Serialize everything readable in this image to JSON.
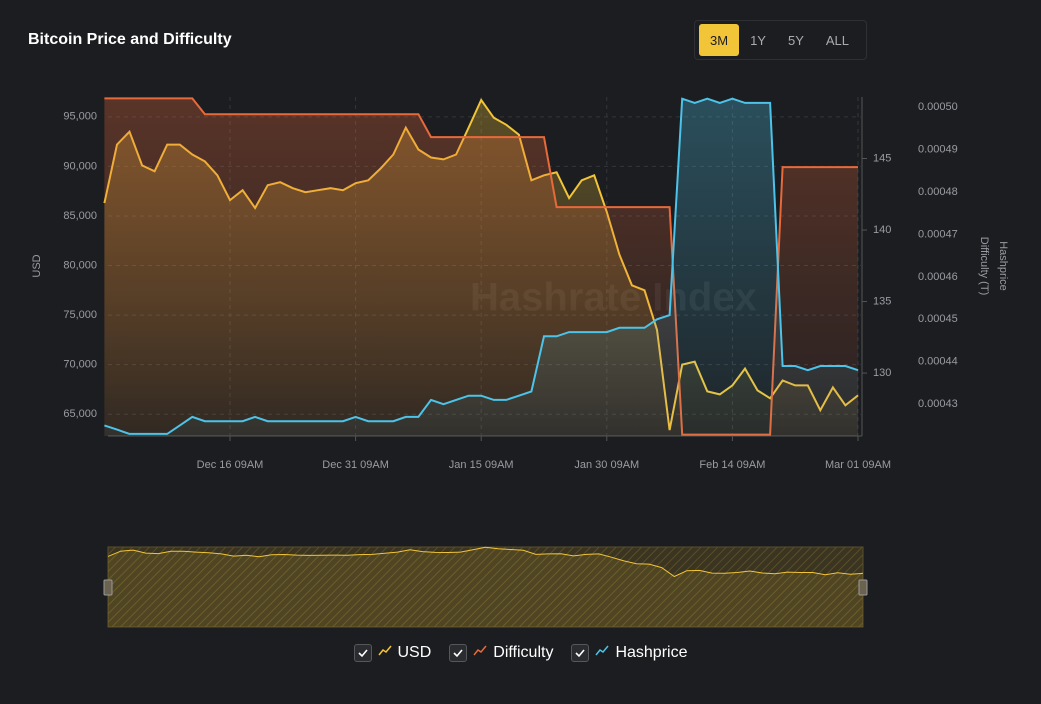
{
  "title": "Bitcoin Price and Difficulty",
  "ranges": [
    "3M",
    "1Y",
    "5Y",
    "ALL"
  ],
  "chart_data": {
    "type": "line",
    "watermark": "Hashrate Index",
    "y_label": "USD",
    "y2_label": "Difficulty (T)",
    "y3_label": "Hashprice",
    "categories": [
      null,
      null,
      null,
      null,
      null,
      null,
      null,
      null,
      null,
      null,
      "Dec 16 09AM",
      null,
      null,
      null,
      null,
      null,
      null,
      null,
      null,
      null,
      "Dec 31 09AM",
      null,
      null,
      null,
      null,
      null,
      null,
      null,
      null,
      null,
      "Jan 15 09AM",
      null,
      null,
      null,
      null,
      null,
      null,
      null,
      null,
      null,
      "Jan 30 09AM",
      null,
      null,
      null,
      null,
      null,
      null,
      null,
      null,
      null,
      "Feb 14 09AM",
      null,
      null,
      null,
      null,
      null,
      null,
      null,
      null,
      null,
      "Mar 01 09AM"
    ],
    "ylim": [
      62800,
      97000
    ],
    "yticks": [
      {
        "value": 65000,
        "label": "65,000"
      },
      {
        "value": 70000,
        "label": "70,000"
      },
      {
        "value": 75000,
        "label": "75,000"
      },
      {
        "value": 80000,
        "label": "80,000"
      },
      {
        "value": 85000,
        "label": "85,000"
      },
      {
        "value": 90000,
        "label": "90,000"
      },
      {
        "value": 95000,
        "label": "95,000"
      }
    ],
    "y2lim": [
      125.6,
      149.3
    ],
    "y2ticks": [
      130,
      135,
      140,
      145
    ],
    "y3lim": [
      0.0004225,
      0.0005024
    ],
    "y3ticks": [
      0.00043,
      0.00044,
      0.00045,
      0.00046,
      0.00047,
      0.00048,
      0.00049,
      {
        "value": 0.0005,
        "label": "0.00050"
      }
    ],
    "grid": true,
    "series": [
      {
        "name": "USD",
        "color": "#f2c438",
        "axis": "y",
        "values": [
          86300,
          92200,
          93500,
          90100,
          89500,
          92200,
          92200,
          91200,
          90500,
          89100,
          86600,
          87600,
          85800,
          88100,
          88400,
          87800,
          87400,
          87600,
          87800,
          87600,
          88300,
          88600,
          89800,
          91200,
          93900,
          91700,
          90900,
          90700,
          91200,
          93900,
          96700,
          94900,
          94200,
          93200,
          88600,
          89100,
          89400,
          86800,
          88600,
          89100,
          85400,
          81100,
          78000,
          77500,
          73500,
          63400,
          70000,
          70300,
          67300,
          67000,
          67900,
          69600,
          67400,
          66600,
          68400,
          67900,
          67900,
          65400,
          67700,
          65900,
          66900
        ]
      },
      {
        "name": "Difficulty",
        "color": "#e8693a",
        "axis": "y2",
        "values": [
          149.2,
          149.2,
          149.2,
          149.2,
          149.2,
          149.2,
          149.2,
          149.2,
          148.1,
          148.1,
          148.1,
          148.1,
          148.1,
          148.1,
          148.1,
          148.1,
          148.1,
          148.1,
          148.1,
          148.1,
          148.1,
          148.1,
          148.1,
          148.1,
          148.1,
          148.1,
          146.5,
          146.5,
          146.5,
          146.5,
          146.5,
          146.5,
          146.5,
          146.5,
          146.5,
          146.5,
          141.6,
          141.6,
          141.6,
          141.6,
          141.6,
          141.6,
          141.6,
          141.6,
          141.6,
          141.6,
          125.7,
          125.7,
          125.7,
          125.7,
          125.7,
          125.7,
          125.7,
          125.7,
          144.4,
          144.4,
          144.4,
          144.4,
          144.4,
          144.4,
          144.4
        ]
      },
      {
        "name": "Hashprice",
        "color": "#4cc3e8",
        "axis": "y3",
        "values": [
          0.000425,
          0.000424,
          0.000423,
          0.000423,
          0.000423,
          0.000423,
          0.000425,
          0.000427,
          0.000426,
          0.000426,
          0.000426,
          0.000426,
          0.000427,
          0.000426,
          0.000426,
          0.000426,
          0.000426,
          0.000426,
          0.000426,
          0.000426,
          0.000427,
          0.000426,
          0.000426,
          0.000426,
          0.000427,
          0.000427,
          0.000431,
          0.00043,
          0.000431,
          0.000432,
          0.000432,
          0.000431,
          0.000431,
          0.000432,
          0.000433,
          0.000446,
          0.000446,
          0.000447,
          0.000447,
          0.000447,
          0.000447,
          0.000448,
          0.000448,
          0.000448,
          0.00045,
          0.000451,
          0.000502,
          0.000501,
          0.000502,
          0.000501,
          0.000502,
          0.000501,
          0.000501,
          0.000501,
          0.000439,
          0.000439,
          0.000438,
          0.000439,
          0.000439,
          0.000439,
          0.000438
        ]
      }
    ]
  }
}
